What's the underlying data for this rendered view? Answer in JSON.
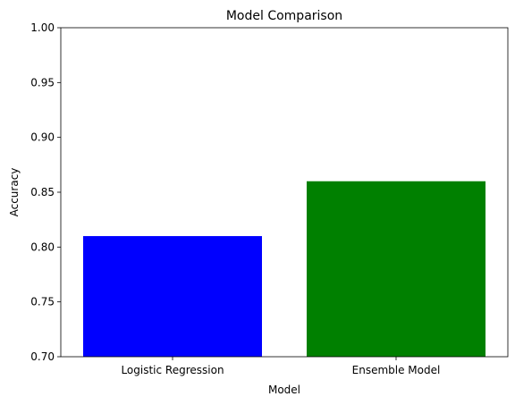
{
  "chart_data": {
    "type": "bar",
    "title": "Model Comparison",
    "xlabel": "Model",
    "ylabel": "Accuracy",
    "categories": [
      "Logistic Regression",
      "Ensemble Model"
    ],
    "values": [
      0.81,
      0.86
    ],
    "bar_colors": [
      "#0000ff",
      "#008000"
    ],
    "ylim": [
      0.7,
      1.0
    ],
    "yticks": [
      "0.70",
      "0.75",
      "0.80",
      "0.85",
      "0.90",
      "0.95",
      "1.00"
    ],
    "grid": false,
    "legend": "none"
  }
}
